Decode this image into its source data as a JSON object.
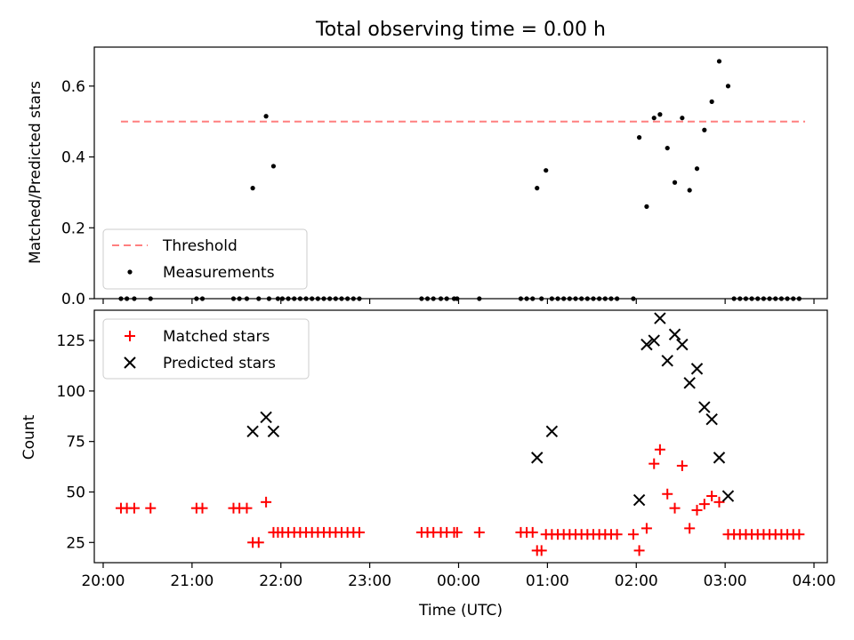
{
  "chart_data": [
    {
      "type": "scatter",
      "title": "Total observing time = 0.00 h",
      "xlabel": "",
      "ylabel": "Matched/Predicted stars",
      "xlim": [
        "19:54",
        "04:09"
      ],
      "ylim": [
        0,
        0.71
      ],
      "yticks": [
        "0.0",
        "0.2",
        "0.4",
        "0.6"
      ],
      "threshold": {
        "name": "Threshold",
        "value": 0.5,
        "x_start": "20:12",
        "x_end": "03:54",
        "color": "#ff7f7f"
      },
      "series": [
        {
          "name": "Measurements",
          "color": "#000000",
          "x": [
            "20:12",
            "20:16",
            "20:21",
            "20:32",
            "21:03",
            "21:07",
            "21:28",
            "21:32",
            "21:37",
            "21:41",
            "21:45",
            "21:50",
            "21:52",
            "21:55",
            "21:58",
            "22:01",
            "22:05",
            "22:09",
            "22:13",
            "22:17",
            "22:21",
            "22:25",
            "22:29",
            "22:33",
            "22:37",
            "22:41",
            "22:45",
            "22:49",
            "22:53",
            "23:35",
            "23:39",
            "23:43",
            "23:48",
            "23:52",
            "23:57",
            "23:59",
            "00:14",
            "00:42",
            "00:46",
            "00:50",
            "00:53",
            "00:56",
            "00:59",
            "01:03",
            "01:07",
            "01:11",
            "01:15",
            "01:19",
            "01:23",
            "01:27",
            "01:31",
            "01:35",
            "01:39",
            "01:43",
            "01:47",
            "01:58",
            "02:02",
            "02:07",
            "02:12",
            "02:16",
            "02:21",
            "02:26",
            "02:31",
            "02:36",
            "02:41",
            "02:46",
            "02:51",
            "02:56",
            "03:02",
            "03:06",
            "03:10",
            "03:14",
            "03:18",
            "03:22",
            "03:26",
            "03:30",
            "03:34",
            "03:38",
            "03:42",
            "03:46",
            "03:50"
          ],
          "y": [
            0,
            0,
            0,
            0,
            0,
            0,
            0,
            0,
            0,
            0.312,
            0,
            0.515,
            0,
            0.374,
            0,
            0,
            0,
            0,
            0,
            0,
            0,
            0,
            0,
            0,
            0,
            0,
            0,
            0,
            0,
            0,
            0,
            0,
            0,
            0,
            0,
            0,
            0,
            0,
            0,
            0,
            0.312,
            0,
            0.362,
            0,
            0,
            0,
            0,
            0,
            0,
            0,
            0,
            0,
            0,
            0,
            0,
            0,
            0.455,
            0.26,
            0.51,
            0.52,
            0.425,
            0.328,
            0.51,
            0.306,
            0.367,
            0.476,
            0.556,
            0.67,
            0.6,
            0,
            0,
            0,
            0,
            0,
            0,
            0,
            0,
            0,
            0,
            0,
            0
          ]
        }
      ],
      "legend": "bottom-left"
    },
    {
      "type": "scatter",
      "title": "",
      "xlabel": "Time (UTC)",
      "ylabel": "Count",
      "xlim": [
        "19:54",
        "04:09"
      ],
      "ylim": [
        15,
        140
      ],
      "xticks": [
        "20:00",
        "21:00",
        "22:00",
        "23:00",
        "00:00",
        "01:00",
        "02:00",
        "03:00",
        "04:00"
      ],
      "yticks": [
        "25",
        "50",
        "75",
        "100",
        "125"
      ],
      "series": [
        {
          "name": "Matched stars",
          "color": "#ff0000",
          "marker": "+",
          "x": [
            "20:12",
            "20:16",
            "20:21",
            "20:32",
            "21:03",
            "21:07",
            "21:28",
            "21:32",
            "21:37",
            "21:41",
            "21:45",
            "21:50",
            "21:55",
            "21:58",
            "22:01",
            "22:05",
            "22:09",
            "22:13",
            "22:17",
            "22:21",
            "22:25",
            "22:29",
            "22:33",
            "22:37",
            "22:41",
            "22:45",
            "22:49",
            "22:53",
            "23:35",
            "23:39",
            "23:43",
            "23:48",
            "23:52",
            "23:57",
            "23:59",
            "00:14",
            "00:42",
            "00:46",
            "00:50",
            "00:53",
            "00:56",
            "00:59",
            "01:03",
            "01:07",
            "01:11",
            "01:15",
            "01:19",
            "01:23",
            "01:27",
            "01:31",
            "01:35",
            "01:39",
            "01:43",
            "01:47",
            "01:58",
            "02:02",
            "02:07",
            "02:12",
            "02:16",
            "02:21",
            "02:26",
            "02:31",
            "02:36",
            "02:41",
            "02:46",
            "02:51",
            "02:56",
            "03:02",
            "03:06",
            "03:10",
            "03:14",
            "03:18",
            "03:22",
            "03:26",
            "03:30",
            "03:34",
            "03:38",
            "03:42",
            "03:46",
            "03:50"
          ],
          "y": [
            42,
            42,
            42,
            42,
            42,
            42,
            42,
            42,
            42,
            25,
            25,
            45,
            30,
            30,
            30,
            30,
            30,
            30,
            30,
            30,
            30,
            30,
            30,
            30,
            30,
            30,
            30,
            30,
            30,
            30,
            30,
            30,
            30,
            30,
            30,
            30,
            30,
            30,
            30,
            21,
            21,
            29,
            29,
            29,
            29,
            29,
            29,
            29,
            29,
            29,
            29,
            29,
            29,
            29,
            29,
            21,
            32,
            64,
            71,
            49,
            42,
            63,
            32,
            41,
            44,
            48,
            45,
            29,
            29,
            29,
            29,
            29,
            29,
            29,
            29,
            29,
            29,
            29,
            29,
            29
          ]
        },
        {
          "name": "Predicted stars",
          "color": "#000000",
          "marker": "x",
          "x": [
            "21:41",
            "21:50",
            "21:55",
            "00:53",
            "01:03",
            "02:02",
            "02:07",
            "02:12",
            "02:16",
            "02:21",
            "02:26",
            "02:31",
            "02:36",
            "02:41",
            "02:46",
            "02:51",
            "02:56",
            "03:02"
          ],
          "y": [
            80,
            87,
            80,
            67,
            80,
            46,
            123,
            125,
            136,
            115,
            128,
            123,
            104,
            111,
            92,
            86,
            67,
            48
          ]
        }
      ],
      "legend": "top-left"
    }
  ]
}
